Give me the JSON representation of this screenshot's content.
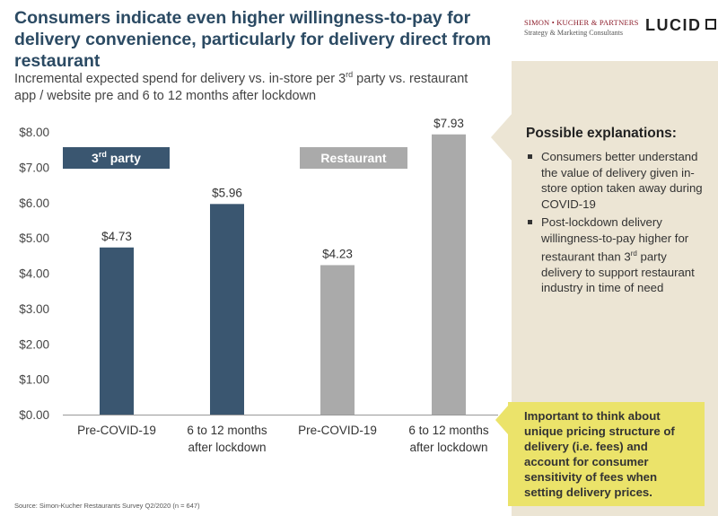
{
  "header": {
    "title": "Consumers indicate even higher willingness-to-pay for delivery convenience, particularly for delivery direct from restaurant",
    "logo_sk_main": "SIMON • KUCHER & PARTNERS",
    "logo_sk_sub": "Strategy & Marketing Consultants",
    "logo_lucid": "LUCID"
  },
  "subtitle": {
    "part1": "Incremental expected spend for delivery vs. in-store per 3",
    "sup": "rd",
    "part2": " party vs. restaurant app / website pre and 6 to 12 months after lockdown"
  },
  "chart_data": {
    "type": "bar",
    "title": "",
    "xlabel": "",
    "ylabel": "",
    "ylim": [
      0,
      8
    ],
    "yticks": [
      0,
      1,
      2,
      3,
      4,
      5,
      6,
      7,
      8
    ],
    "ytick_labels": [
      "$0.00",
      "$1.00",
      "$2.00",
      "$3.00",
      "$4.00",
      "$5.00",
      "$6.00",
      "$7.00",
      "$8.00"
    ],
    "categories": [
      "Pre-COVID-19",
      "6 to 12 months after lockdown",
      "Pre-COVID-19",
      "6 to 12 months after lockdown"
    ],
    "values": [
      4.73,
      5.96,
      4.23,
      7.93
    ],
    "value_labels": [
      "$4.73",
      "$5.96",
      "$4.23",
      "$7.93"
    ],
    "groups": [
      {
        "name": "3rd party",
        "label_main": "3",
        "label_sup": "rd",
        "label_rest": " party",
        "color": "#3a5670",
        "bars": [
          0,
          1
        ]
      },
      {
        "name": "Restaurant",
        "label_main": "Restaurant",
        "label_sup": "",
        "label_rest": "",
        "color": "#aaaaaa",
        "bars": [
          2,
          3
        ]
      }
    ],
    "bar_colors": [
      "#3a5670",
      "#3a5670",
      "#aaaaaa",
      "#aaaaaa"
    ]
  },
  "explanations": {
    "heading": "Possible explanations:",
    "item1": "Consumers better understand the value of delivery given in-store option taken away during COVID-19",
    "item2_part1": "Post-lockdown delivery willingness-to-pay higher for restaurant than 3",
    "item2_sup": "rd",
    "item2_part2": " party delivery to support restaurant industry in time of need"
  },
  "callout": {
    "text": "Important to think about unique pricing structure of delivery (i.e. fees) and account for consumer sensitivity of fees when setting delivery prices."
  },
  "footer": {
    "source": "Source: Simon-Kucher Restaurants Survey Q2/2020 (n = 647)"
  }
}
